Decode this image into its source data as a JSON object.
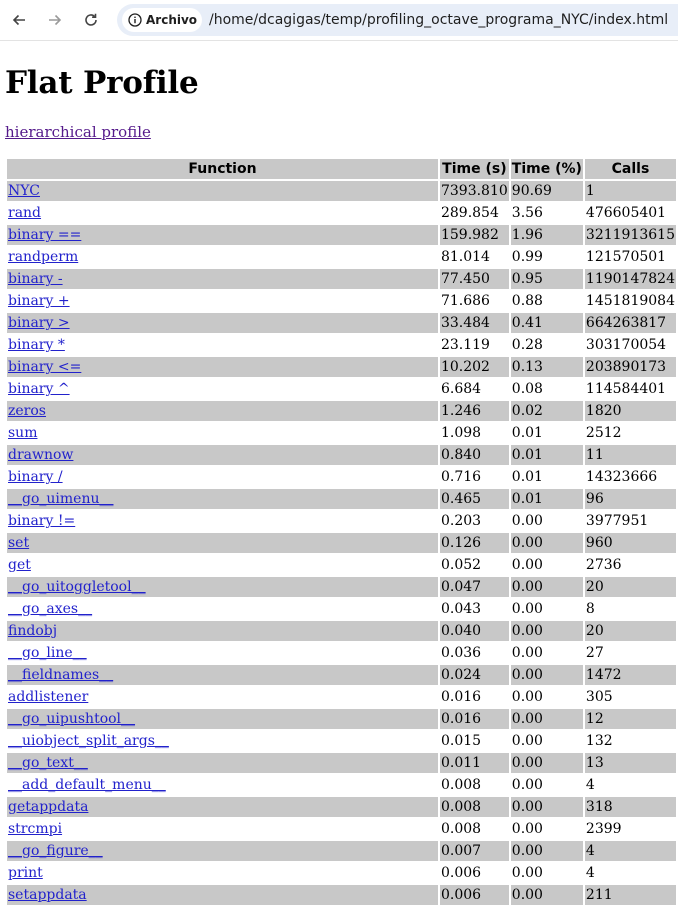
{
  "browser": {
    "chip_label": "Archivo",
    "url": "/home/dcagigas/temp/profiling_octave_programa_NYC/index.html"
  },
  "page": {
    "title": "Flat Profile",
    "hierarchical_link": "hierarchical profile"
  },
  "table": {
    "headers": [
      "Function",
      "Time (s)",
      "Time (%)",
      "Calls"
    ],
    "rows": [
      {
        "function": "NYC",
        "time": "7393.810",
        "pct": "90.69",
        "calls": "1"
      },
      {
        "function": "rand",
        "time": "289.854",
        "pct": "3.56",
        "calls": "476605401"
      },
      {
        "function": "binary ==",
        "time": "159.982",
        "pct": "1.96",
        "calls": "3211913615"
      },
      {
        "function": "randperm",
        "time": "81.014",
        "pct": "0.99",
        "calls": "121570501"
      },
      {
        "function": "binary -",
        "time": "77.450",
        "pct": "0.95",
        "calls": "1190147824"
      },
      {
        "function": "binary +",
        "time": "71.686",
        "pct": "0.88",
        "calls": "1451819084"
      },
      {
        "function": "binary >",
        "time": "33.484",
        "pct": "0.41",
        "calls": "664263817"
      },
      {
        "function": "binary *",
        "time": "23.119",
        "pct": "0.28",
        "calls": "303170054"
      },
      {
        "function": "binary <=",
        "time": "10.202",
        "pct": "0.13",
        "calls": "203890173"
      },
      {
        "function": "binary ^",
        "time": "6.684",
        "pct": "0.08",
        "calls": "114584401"
      },
      {
        "function": "zeros",
        "time": "1.246",
        "pct": "0.02",
        "calls": "1820"
      },
      {
        "function": "sum",
        "time": "1.098",
        "pct": "0.01",
        "calls": "2512"
      },
      {
        "function": "drawnow",
        "time": "0.840",
        "pct": "0.01",
        "calls": "11"
      },
      {
        "function": "binary /",
        "time": "0.716",
        "pct": "0.01",
        "calls": "14323666"
      },
      {
        "function": "__go_uimenu__",
        "time": "0.465",
        "pct": "0.01",
        "calls": "96"
      },
      {
        "function": "binary !=",
        "time": "0.203",
        "pct": "0.00",
        "calls": "3977951"
      },
      {
        "function": "set",
        "time": "0.126",
        "pct": "0.00",
        "calls": "960"
      },
      {
        "function": "get",
        "time": "0.052",
        "pct": "0.00",
        "calls": "2736"
      },
      {
        "function": "__go_uitoggletool__",
        "time": "0.047",
        "pct": "0.00",
        "calls": "20"
      },
      {
        "function": "__go_axes__",
        "time": "0.043",
        "pct": "0.00",
        "calls": "8"
      },
      {
        "function": "findobj",
        "time": "0.040",
        "pct": "0.00",
        "calls": "20"
      },
      {
        "function": "__go_line__",
        "time": "0.036",
        "pct": "0.00",
        "calls": "27"
      },
      {
        "function": "__fieldnames__",
        "time": "0.024",
        "pct": "0.00",
        "calls": "1472"
      },
      {
        "function": "addlistener",
        "time": "0.016",
        "pct": "0.00",
        "calls": "305"
      },
      {
        "function": "__go_uipushtool__",
        "time": "0.016",
        "pct": "0.00",
        "calls": "12"
      },
      {
        "function": "__uiobject_split_args__",
        "time": "0.015",
        "pct": "0.00",
        "calls": "132"
      },
      {
        "function": "__go_text__",
        "time": "0.011",
        "pct": "0.00",
        "calls": "13"
      },
      {
        "function": "__add_default_menu__",
        "time": "0.008",
        "pct": "0.00",
        "calls": "4"
      },
      {
        "function": "getappdata",
        "time": "0.008",
        "pct": "0.00",
        "calls": "318"
      },
      {
        "function": "strcmpi",
        "time": "0.008",
        "pct": "0.00",
        "calls": "2399"
      },
      {
        "function": "__go_figure__",
        "time": "0.007",
        "pct": "0.00",
        "calls": "4"
      },
      {
        "function": "print",
        "time": "0.006",
        "pct": "0.00",
        "calls": "4"
      },
      {
        "function": "setappdata",
        "time": "0.006",
        "pct": "0.00",
        "calls": "211"
      }
    ]
  },
  "icons": {
    "back": "arrow-left-icon",
    "forward": "arrow-right-icon",
    "reload": "reload-icon",
    "info": "info-icon"
  }
}
